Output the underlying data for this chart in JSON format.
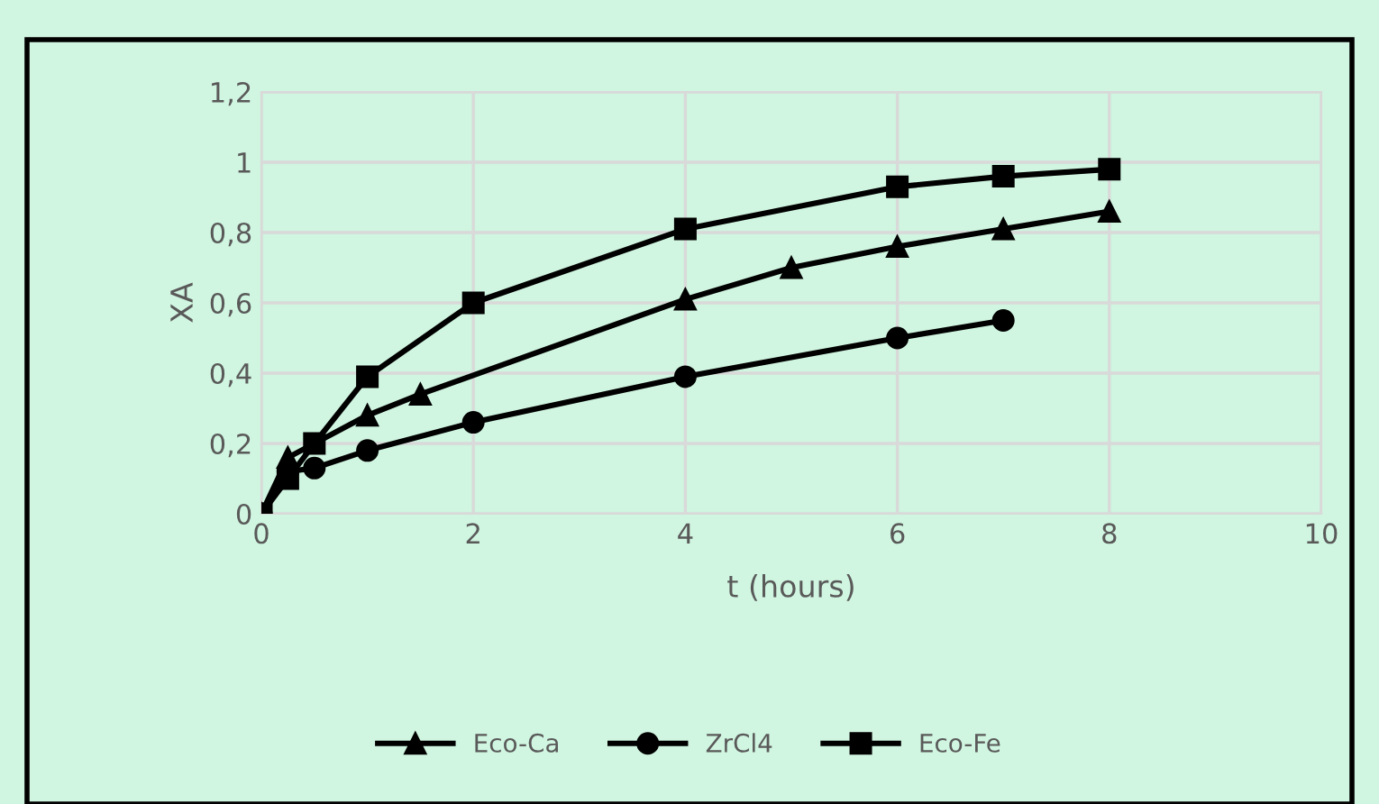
{
  "chart_data": {
    "type": "line",
    "xlabel": "t (hours)",
    "ylabel": "XA",
    "series": [
      {
        "name": "Eco-Ca",
        "color": "#000000",
        "marker": "triangle",
        "x": [
          0,
          0.25,
          1,
          1.5,
          4,
          5,
          6,
          7,
          8
        ],
        "values": [
          0,
          0.16,
          0.28,
          0.34,
          0.61,
          0.7,
          0.76,
          0.81,
          0.86
        ]
      },
      {
        "name": "ZrCl4",
        "color": "#000000",
        "marker": "circle",
        "x": [
          0,
          0.25,
          0.5,
          1,
          2,
          4,
          6,
          7
        ],
        "values": [
          0,
          0.12,
          0.13,
          0.18,
          0.26,
          0.39,
          0.5,
          0.55
        ]
      },
      {
        "name": "Eco-Fe",
        "color": "#000000",
        "marker": "square",
        "x": [
          0,
          0.25,
          0.5,
          1,
          2,
          4,
          6,
          7,
          8
        ],
        "values": [
          0,
          0.1,
          0.2,
          0.39,
          0.6,
          0.81,
          0.93,
          0.96,
          0.98
        ]
      }
    ],
    "xlim": [
      0,
      10
    ],
    "xticks": [
      0,
      2,
      4,
      6,
      8,
      10
    ],
    "ylim": [
      0,
      1.2
    ],
    "yticks": [
      0,
      {
        "value": 0.2,
        "label": "0,2"
      },
      {
        "value": 0.4,
        "label": "0,4"
      },
      {
        "value": 0.6,
        "label": "0,6"
      },
      {
        "value": 0.8,
        "label": "0,8"
      },
      1,
      {
        "value": 1.2,
        "label": "1,2"
      }
    ],
    "grid": true,
    "legend": "bottom",
    "line_style": "solid"
  }
}
